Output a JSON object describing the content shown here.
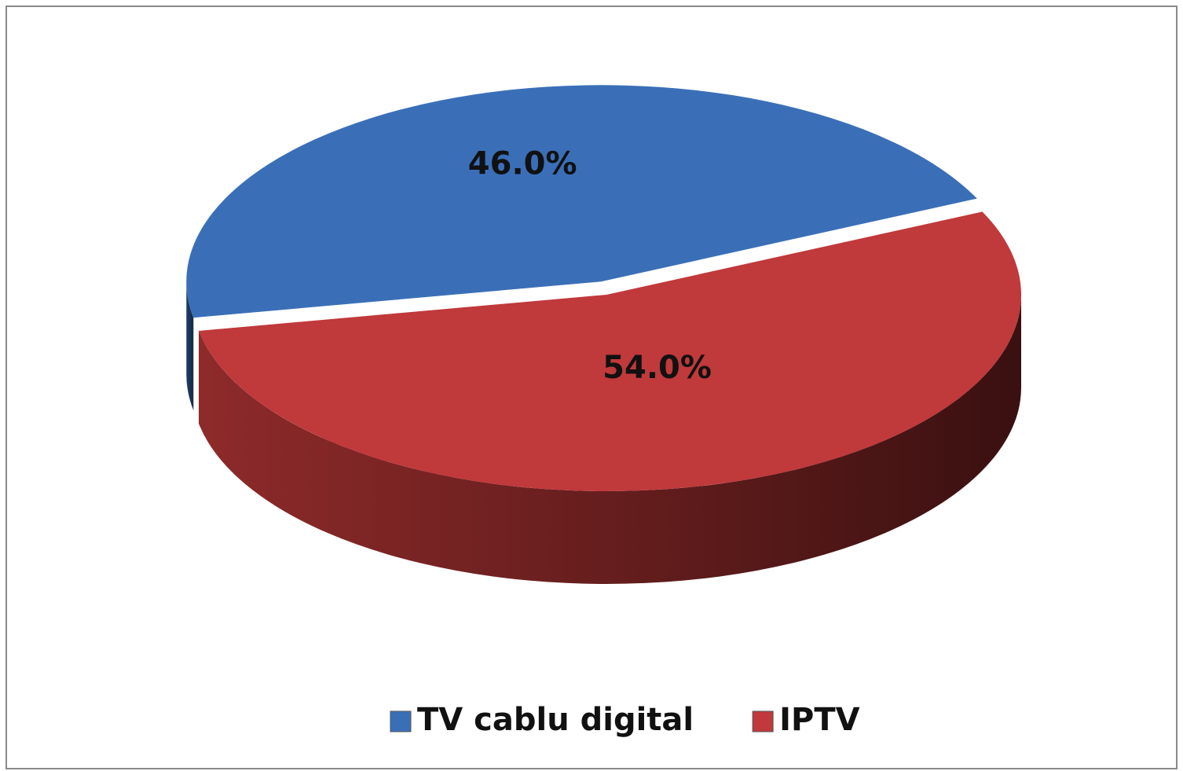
{
  "chart_data": {
    "type": "pie",
    "categories": [
      "TV cablu digital",
      "IPTV"
    ],
    "values": [
      46,
      54
    ],
    "value_labels": [
      "46.0%",
      "54.0%"
    ],
    "colors": [
      "#3a6fb8",
      "#c0393b"
    ],
    "legend": "bottom"
  }
}
